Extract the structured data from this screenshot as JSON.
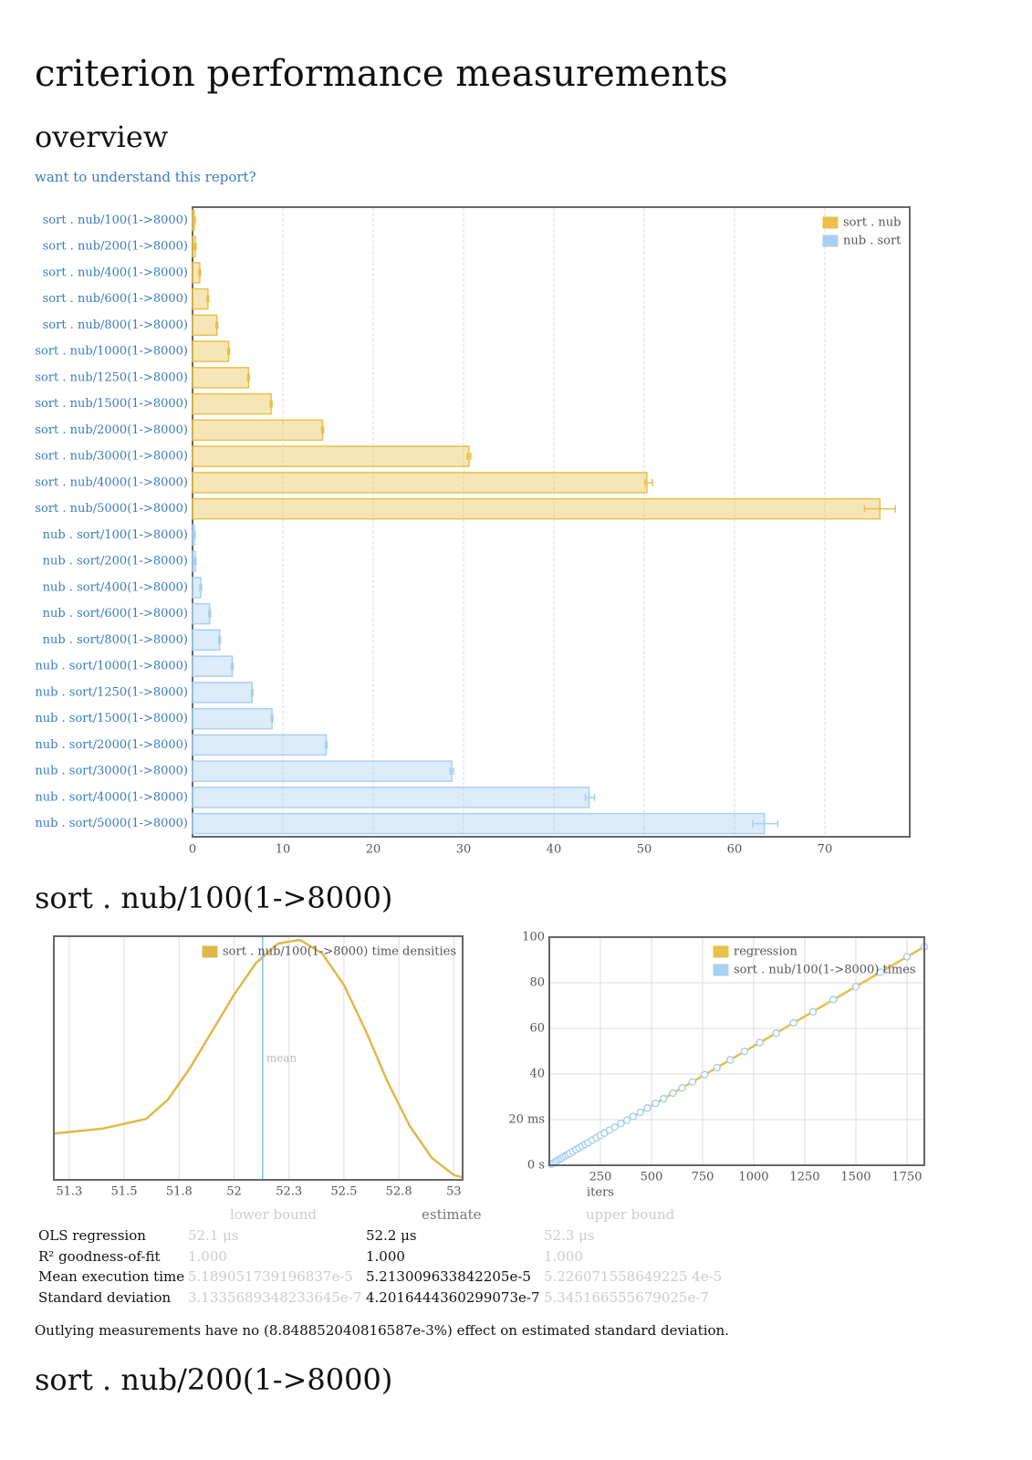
{
  "title": "criterion performance measurements",
  "overview": {
    "heading": "overview",
    "link": "want to understand this report?"
  },
  "chart_data": [
    {
      "type": "bar",
      "orientation": "horizontal",
      "categories": [
        "sort . nub/100(1->8000)",
        "sort . nub/200(1->8000)",
        "sort . nub/400(1->8000)",
        "sort . nub/600(1->8000)",
        "sort . nub/800(1->8000)",
        "sort . nub/1000(1->8000)",
        "sort . nub/1250(1->8000)",
        "sort . nub/1500(1->8000)",
        "sort . nub/2000(1->8000)",
        "sort . nub/3000(1->8000)",
        "sort . nub/4000(1->8000)",
        "sort . nub/5000(1->8000)",
        "nub . sort/100(1->8000)",
        "nub . sort/200(1->8000)",
        "nub . sort/400(1->8000)",
        "nub . sort/600(1->8000)",
        "nub . sort/800(1->8000)",
        "nub . sort/1000(1->8000)",
        "nub . sort/1250(1->8000)",
        "nub . sort/1500(1->8000)",
        "nub . sort/2000(1->8000)",
        "nub . sort/3000(1->8000)",
        "nub . sort/4000(1->8000)",
        "nub . sort/5000(1->8000)"
      ],
      "series": [
        {
          "name": "sort . nub",
          "color": "#e8c04a",
          "values": [
            0.2,
            0.3,
            0.8,
            1.7,
            2.7,
            4.0,
            6.2,
            8.7,
            14.4,
            30.6,
            50.3,
            76.1,
            null,
            null,
            null,
            null,
            null,
            null,
            null,
            null,
            null,
            null,
            null,
            null
          ],
          "lower": [
            0.1,
            0.2,
            0.7,
            1.6,
            2.6,
            3.9,
            6.1,
            8.6,
            14.3,
            30.4,
            50.1,
            74.4,
            null,
            null,
            null,
            null,
            null,
            null,
            null,
            null,
            null,
            null,
            null,
            null
          ],
          "upper": [
            0.3,
            0.4,
            0.9,
            1.8,
            2.8,
            4.1,
            6.3,
            8.8,
            14.5,
            30.8,
            50.9,
            77.8,
            null,
            null,
            null,
            null,
            null,
            null,
            null,
            null,
            null,
            null,
            null,
            null
          ]
        },
        {
          "name": "nub . sort",
          "color": "#a8d0f0",
          "values": [
            null,
            null,
            null,
            null,
            null,
            null,
            null,
            null,
            null,
            null,
            null,
            null,
            0.2,
            0.3,
            0.9,
            1.9,
            3.0,
            4.4,
            6.6,
            8.8,
            14.8,
            28.7,
            43.9,
            63.3
          ],
          "lower": [
            null,
            null,
            null,
            null,
            null,
            null,
            null,
            null,
            null,
            null,
            null,
            null,
            0.1,
            0.2,
            0.8,
            1.8,
            2.9,
            4.3,
            6.5,
            8.7,
            14.7,
            28.5,
            43.5,
            62.0
          ],
          "upper": [
            null,
            null,
            null,
            null,
            null,
            null,
            null,
            null,
            null,
            null,
            null,
            null,
            0.3,
            0.4,
            1.0,
            2.0,
            3.1,
            4.5,
            6.7,
            8.9,
            14.9,
            28.9,
            44.5,
            64.8
          ]
        }
      ],
      "xlim": [
        0,
        79.4
      ],
      "xticks": [
        0,
        10,
        20,
        30,
        40,
        50,
        60,
        70
      ],
      "grid": true,
      "legend": "upper right"
    },
    {
      "type": "line",
      "x": [
        51.18,
        51.4,
        51.6,
        51.7,
        51.8,
        51.9,
        52.0,
        52.1,
        52.2,
        52.3,
        52.4,
        52.5,
        52.6,
        52.7,
        52.8,
        52.9,
        53.0,
        53.04
      ],
      "series": [
        {
          "name": "sort . nub/100(1->8000) time densities",
          "color": "#e0b84a",
          "values": [
            0.19,
            0.21,
            0.25,
            0.33,
            0.46,
            0.61,
            0.76,
            0.89,
            0.97,
            0.985,
            0.93,
            0.8,
            0.61,
            0.4,
            0.22,
            0.09,
            0.02,
            0.01
          ]
        }
      ],
      "annotations": [
        {
          "text": "mean",
          "x": 52.13,
          "color": "#7fc0e6"
        }
      ],
      "xlim": [
        51.18,
        53.04
      ],
      "ylim": [
        0,
        1
      ],
      "xticks": [
        {
          "value": 51.25,
          "label": "51.3"
        },
        51.5,
        {
          "value": 51.75,
          "label": "51.8"
        },
        52,
        {
          "value": 52.25,
          "label": "52.3"
        },
        52.5,
        {
          "value": 52.75,
          "label": "52.8"
        },
        53
      ],
      "grid": true,
      "legend": "upper right"
    },
    {
      "type": "scatter",
      "xlabel": "iters",
      "series": [
        {
          "name": "regression",
          "color": "#e8c04a",
          "mode": "line",
          "x": [
            0,
            1835
          ],
          "values": [
            0,
            95.8
          ]
        },
        {
          "name": "sort . nub/100(1->8000) times",
          "color": "#a8d0f0",
          "mode": "markers",
          "x": [
            10,
            20,
            30,
            40,
            50,
            60,
            70,
            80,
            90,
            100,
            115,
            130,
            145,
            160,
            175,
            190,
            210,
            230,
            250,
            270,
            295,
            320,
            350,
            380,
            410,
            445,
            480,
            520,
            560,
            605,
            650,
            700,
            760,
            820,
            885,
            955,
            1030,
            1110,
            1195,
            1290,
            1390,
            1500,
            1620,
            1750,
            1835
          ],
          "values": [
            0.5,
            1.0,
            1.6,
            2.1,
            2.6,
            3.1,
            3.7,
            4.2,
            4.7,
            5.2,
            6.0,
            6.8,
            7.6,
            8.4,
            9.1,
            9.9,
            11.0,
            12.0,
            13.1,
            14.1,
            15.4,
            16.7,
            18.3,
            19.8,
            21.4,
            23.2,
            25.1,
            27.1,
            29.2,
            31.6,
            33.9,
            36.5,
            39.7,
            42.8,
            46.2,
            49.9,
            53.8,
            57.9,
            62.4,
            67.3,
            72.6,
            78.3,
            84.6,
            91.4,
            95.8
          ]
        }
      ],
      "xlim": [
        0,
        1835
      ],
      "ylim": [
        0,
        100
      ],
      "xticks": [
        250,
        500,
        750,
        1000,
        1250,
        1500,
        1750
      ],
      "yticks": [
        {
          "value": 0,
          "label": "0 s"
        },
        {
          "value": 20,
          "label": "20 ms"
        },
        40,
        60,
        80,
        100
      ],
      "grid": true,
      "legend": "upper center"
    }
  ],
  "section": {
    "heading": "sort . nub/100(1->8000)",
    "table": {
      "header": [
        "lower bound",
        "estimate",
        "upper bound"
      ],
      "rows": [
        [
          "OLS regression",
          "52.1 μs",
          "52.2 μs",
          "52.3 μs"
        ],
        [
          "R² goodness-of-fit",
          "1.000",
          "1.000",
          "1.000"
        ],
        [
          "Mean execution time",
          "5.189051739196837e-5",
          "5.213009633842205e-5",
          "5.226071558649225 4e-5"
        ],
        [
          "Standard deviation",
          "3.1335689348233645e-7",
          "4.2016444360299073e-7",
          "5.345166555679025e-7"
        ]
      ]
    },
    "note": "Outlying measurements have no (8.848852040816587e-3%) effect on estimated standard deviation."
  },
  "next_section": {
    "heading": "sort . nub/200(1->8000)"
  }
}
